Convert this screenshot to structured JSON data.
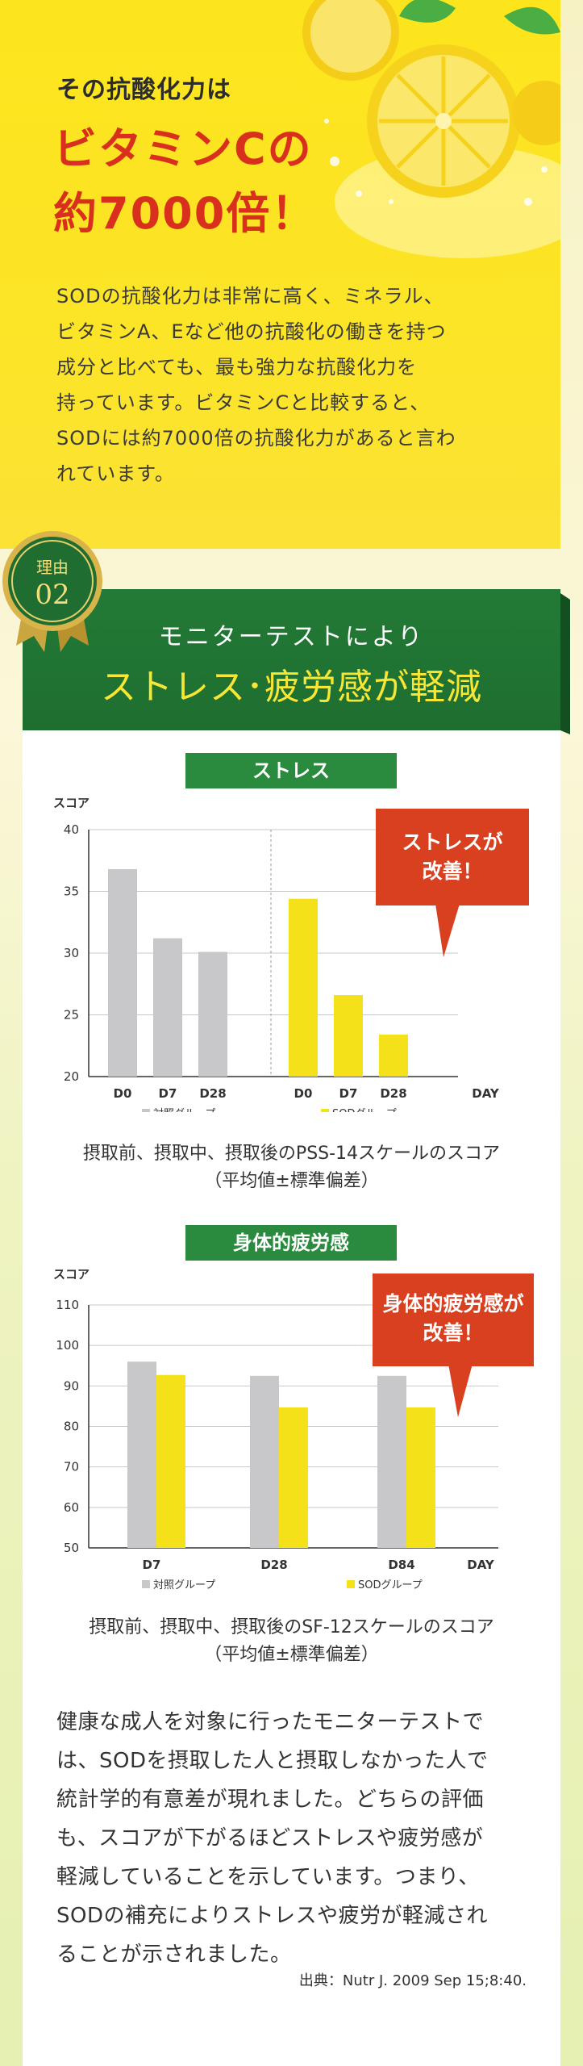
{
  "hero": {
    "subtitle": "その抗酸化力は",
    "headline_line1": "ビタミンCの",
    "headline_line2": "約7000倍！",
    "body_lines": [
      "SODの抗酸化力は非常に高く、ミネラル、",
      "ビタミンA、Eなど他の抗酸化の働きを持つ",
      "成分と比べても、最も強力な抗酸化力を",
      "持っています。ビタミンCと比較すると、",
      "SODには約7000倍の抗酸化力があると言わ",
      "れています。"
    ]
  },
  "badge": {
    "label": "理由",
    "number": "02"
  },
  "banner": {
    "subtitle": "モニターテストにより",
    "title": "ストレス･疲労感が軽減"
  },
  "colors": {
    "control": "#c8c8ca",
    "sod": "#f5e11a",
    "title_green": "#2a8a3e",
    "callout_red": "#d8401f"
  },
  "chart_data": [
    {
      "type": "bar",
      "title": "ストレス",
      "ylabel": "スコア",
      "xlabel": "DAY",
      "ylim": [
        20,
        40
      ],
      "yticks": [
        20,
        25,
        30,
        35,
        40
      ],
      "groups": [
        {
          "name": "対照グループ",
          "categories": [
            "D0",
            "D7",
            "D28"
          ],
          "values": [
            36.8,
            31.2,
            30.1
          ]
        },
        {
          "name": "SODグループ",
          "categories": [
            "D0",
            "D7",
            "D28"
          ],
          "values": [
            34.4,
            26.6,
            23.4
          ]
        }
      ],
      "legend": [
        "対照グループ",
        "SODグループ"
      ],
      "callout": [
        "ストレスが",
        "改善！"
      ],
      "caption": [
        "摂取前、摂取中、摂取後のPSS-14スケールのスコア",
        "（平均値±標準偏差）"
      ]
    },
    {
      "type": "bar",
      "title": "身体的疲労感",
      "ylabel": "スコア",
      "xlabel": "DAY",
      "ylim": [
        50,
        110
      ],
      "yticks": [
        50,
        60,
        70,
        80,
        90,
        100,
        110
      ],
      "categories": [
        "D7",
        "D28",
        "D84"
      ],
      "series": [
        {
          "name": "対照グループ",
          "values": [
            96,
            92.5,
            92.5
          ]
        },
        {
          "name": "SODグループ",
          "values": [
            92.7,
            84.7,
            84.7
          ]
        }
      ],
      "callout": [
        "身体的疲労感が",
        "改善！"
      ],
      "caption": [
        "摂取前、摂取中、摂取後のSF-12スケールのスコア",
        "（平均値±標準偏差）"
      ]
    }
  ],
  "conclusion_lines": [
    "健康な成人を対象に行ったモニターテストで",
    "は、SODを摂取した人と摂取しなかった人で",
    "統計学的有意差が現れました。どちらの評価",
    "も、スコアが下がるほどストレスや疲労感が",
    "軽減していることを示しています。つまり、",
    "SODの補充によりストレスや疲労が軽減され",
    "ることが示されました。"
  ],
  "source": "出典：Nutr J. 2009 Sep 15;8:40."
}
